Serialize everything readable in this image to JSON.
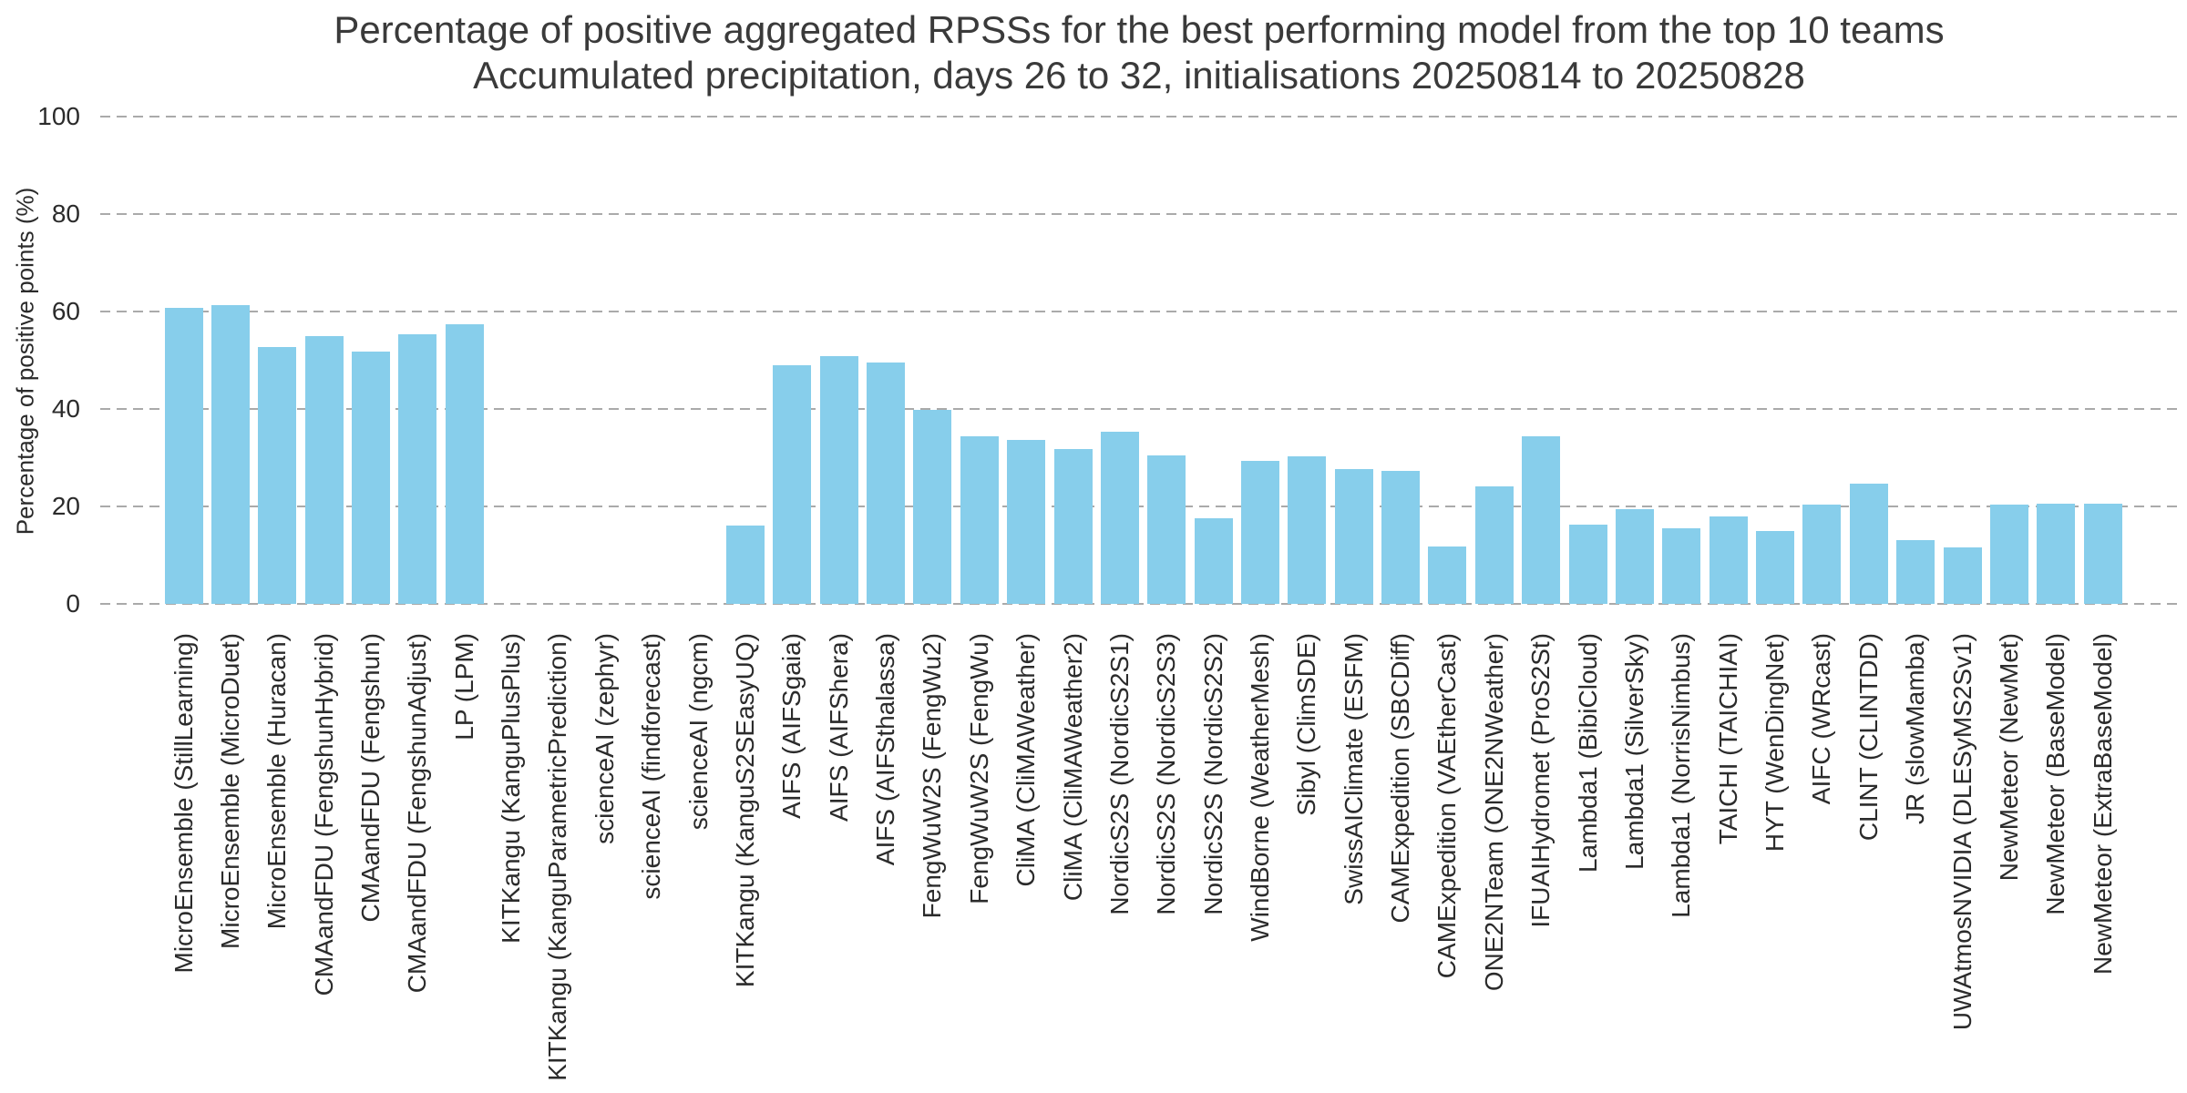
{
  "figure": {
    "title_line1": "Percentage of positive aggregated RPSSs for the best performing model from the top 10 teams",
    "title_line2": "Accumulated precipitation, days 26 to 32, initialisations 20250814 to 20250828",
    "ylabel": "Percentage of positive points (%)"
  },
  "chart_data": {
    "type": "bar",
    "title": "Percentage of positive aggregated RPSSs for the best performing model from the top 10 teams",
    "subtitle": "Accumulated precipitation, days 26 to 32, initialisations 20250814 to 20250828",
    "xlabel": "",
    "ylabel": "Percentage of positive points (%)",
    "ylim": [
      0,
      100
    ],
    "yticks": [
      0,
      20,
      40,
      60,
      80,
      100
    ],
    "grid": "horizontal dashed",
    "legend": "none",
    "bar_color": "#87CEEB",
    "grid_color": "#aaaaaa",
    "text_color": "#2b2b2b",
    "title_color": "#3a3a3a",
    "categories": [
      "MicroEnsemble (StillLearning)",
      "MicroEnsemble (MicroDuet)",
      "MicroEnsemble (Huracan)",
      "CMAandFDU (FengshunHybrid)",
      "CMAandFDU (Fengshun)",
      "CMAandFDU (FengshunAdjust)",
      "LP (LPM)",
      "KITKangu (KanguPlusPlus)",
      "KITKangu (KanguParametricPrediction)",
      "scienceAI (zephyr)",
      "scienceAI (findforecast)",
      "scienceAI (ngcm)",
      "KITKangu (KanguS2SEasyUQ)",
      "AIFS (AIFSgaia)",
      "AIFS (AIFShera)",
      "AIFS (AIFSthalassa)",
      "FengWuW2S (FengWu2)",
      "FengWuW2S (FengWu)",
      "CliMA (CliMAWeather)",
      "CliMA (CliMAWeather2)",
      "NordicS2S (NordicS2S1)",
      "NordicS2S (NordicS2S3)",
      "NordicS2S (NordicS2S2)",
      "WindBorne (WeatherMesh)",
      "Sibyl (ClimSDE)",
      "SwissAIClimate (ESFM)",
      "CAMExpedition (SBCDiff)",
      "CAMExpedition (VAEtherCast)",
      "ONE2NTeam (ONE2NWeather)",
      "IFUAIHydromet (ProS2St)",
      "Lambda1 (BibiCloud)",
      "Lambda1 (SilverSky)",
      "Lambda1 (NorrisNimbus)",
      "TAICHI (TAICHIAI)",
      "HYT (WenDingNet)",
      "AIFC (WRcast)",
      "CLINT (CLINTDD)",
      "JR (slowMamba)",
      "UWAtmosNVIDIA (DLESyMS2Sv1)",
      "NewMeteor (NewMet)",
      "NewMeteor (BaseModel)",
      "NewMeteor (ExtraBaseModel)"
    ],
    "values": [
      60.7,
      61.4,
      52.7,
      54.9,
      51.7,
      55.3,
      57.4,
      0,
      0,
      0,
      0,
      0,
      16.1,
      48.9,
      50.9,
      49.6,
      39.8,
      34.4,
      33.7,
      31.8,
      35.4,
      30.5,
      17.6,
      29.3,
      30.3,
      27.6,
      27.3,
      11.7,
      24.1,
      34.3,
      16.3,
      19.5,
      15.5,
      18.0,
      14.9,
      20.4,
      24.7,
      13.1,
      11.5,
      20.3,
      20.6,
      20.5
    ]
  }
}
